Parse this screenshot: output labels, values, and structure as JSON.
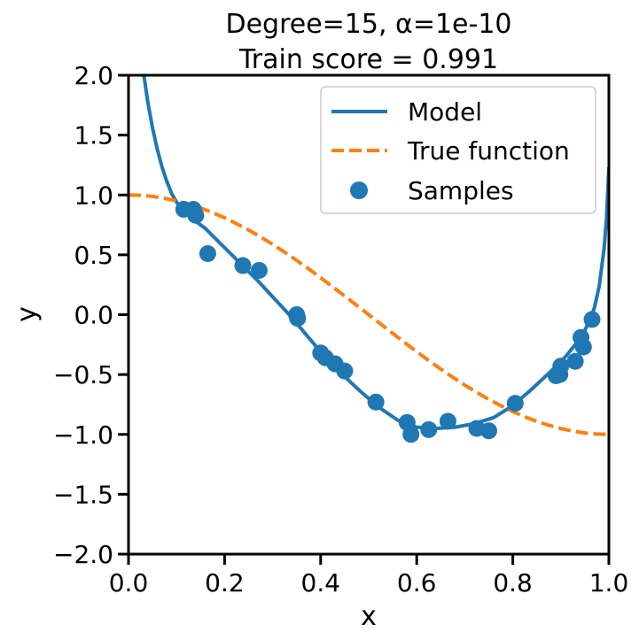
{
  "chart_data": {
    "type": "line",
    "title_line1": "Degree=15, α=1e-10",
    "title_line2": "Train score = 0.991",
    "xlabel": "x",
    "ylabel": "y",
    "xlim": [
      0.0,
      1.0
    ],
    "ylim": [
      -2.0,
      2.0
    ],
    "grid": false,
    "legend_position": "top-right",
    "x_ticks": [
      0.0,
      0.2,
      0.4,
      0.6,
      0.8,
      1.0
    ],
    "x_tick_labels": [
      "0.0",
      "0.2",
      "0.4",
      "0.6",
      "0.8",
      "1.0"
    ],
    "y_ticks": [
      2.0,
      1.5,
      1.0,
      0.5,
      0.0,
      -0.5,
      -1.0,
      -1.5,
      -2.0
    ],
    "y_tick_labels": [
      "2.0",
      "1.5",
      "1.0",
      "0.5",
      "0.0",
      "−0.5",
      "−1.0",
      "−1.5",
      "−2.0"
    ],
    "legend": {
      "model": "Model",
      "true_function": "True function",
      "samples": "Samples"
    },
    "colors": {
      "model": "#1f77b4",
      "true_function": "#ff7f0e",
      "samples": "#1f77b4"
    },
    "series": [
      {
        "name": "Model",
        "style": "solid",
        "x": [
          0.032,
          0.04,
          0.05,
          0.06,
          0.07,
          0.08,
          0.09,
          0.1,
          0.11,
          0.12,
          0.13,
          0.14,
          0.16,
          0.18,
          0.2,
          0.22,
          0.24,
          0.27,
          0.3,
          0.33,
          0.36,
          0.4,
          0.44,
          0.48,
          0.52,
          0.56,
          0.6,
          0.64,
          0.68,
          0.72,
          0.76,
          0.8,
          0.84,
          0.88,
          0.91,
          0.93,
          0.95,
          0.96,
          0.97,
          0.98,
          0.99,
          0.995,
          1.0
        ],
        "y": [
          2.0,
          1.78,
          1.56,
          1.38,
          1.23,
          1.11,
          1.01,
          0.94,
          0.89,
          0.85,
          0.81,
          0.78,
          0.72,
          0.64,
          0.56,
          0.48,
          0.4,
          0.28,
          0.15,
          0.02,
          -0.12,
          -0.31,
          -0.48,
          -0.63,
          -0.77,
          -0.88,
          -0.94,
          -0.95,
          -0.94,
          -0.91,
          -0.86,
          -0.76,
          -0.62,
          -0.47,
          -0.35,
          -0.25,
          -0.13,
          -0.05,
          0.06,
          0.24,
          0.55,
          0.8,
          1.23
        ]
      },
      {
        "name": "True function",
        "style": "dashed",
        "x": [
          0.0,
          0.025,
          0.05,
          0.075,
          0.1,
          0.125,
          0.15,
          0.175,
          0.2,
          0.225,
          0.25,
          0.275,
          0.3,
          0.325,
          0.35,
          0.375,
          0.4,
          0.425,
          0.45,
          0.475,
          0.5,
          0.525,
          0.55,
          0.575,
          0.6,
          0.625,
          0.65,
          0.675,
          0.7,
          0.725,
          0.75,
          0.775,
          0.8,
          0.825,
          0.85,
          0.875,
          0.9,
          0.925,
          0.95,
          0.975,
          1.0
        ],
        "y": [
          1.0,
          0.997,
          0.988,
          0.972,
          0.951,
          0.924,
          0.891,
          0.853,
          0.809,
          0.76,
          0.707,
          0.649,
          0.588,
          0.522,
          0.454,
          0.383,
          0.309,
          0.233,
          0.156,
          0.078,
          0.0,
          -0.078,
          -0.156,
          -0.233,
          -0.309,
          -0.383,
          -0.454,
          -0.522,
          -0.588,
          -0.649,
          -0.707,
          -0.76,
          -0.809,
          -0.853,
          -0.891,
          -0.924,
          -0.951,
          -0.972,
          -0.988,
          -0.997,
          -1.0
        ]
      }
    ],
    "samples": {
      "name": "Samples",
      "x": [
        0.115,
        0.135,
        0.14,
        0.165,
        0.238,
        0.272,
        0.35,
        0.352,
        0.4,
        0.41,
        0.43,
        0.45,
        0.515,
        0.58,
        0.588,
        0.625,
        0.665,
        0.725,
        0.75,
        0.805,
        0.89,
        0.898,
        0.9,
        0.93,
        0.942,
        0.947,
        0.965
      ],
      "y": [
        0.88,
        0.88,
        0.83,
        0.51,
        0.41,
        0.37,
        0.0,
        -0.03,
        -0.32,
        -0.36,
        -0.41,
        -0.47,
        -0.73,
        -0.9,
        -1.0,
        -0.96,
        -0.89,
        -0.95,
        -0.97,
        -0.74,
        -0.51,
        -0.5,
        -0.43,
        -0.39,
        -0.19,
        -0.27,
        -0.04
      ]
    }
  }
}
